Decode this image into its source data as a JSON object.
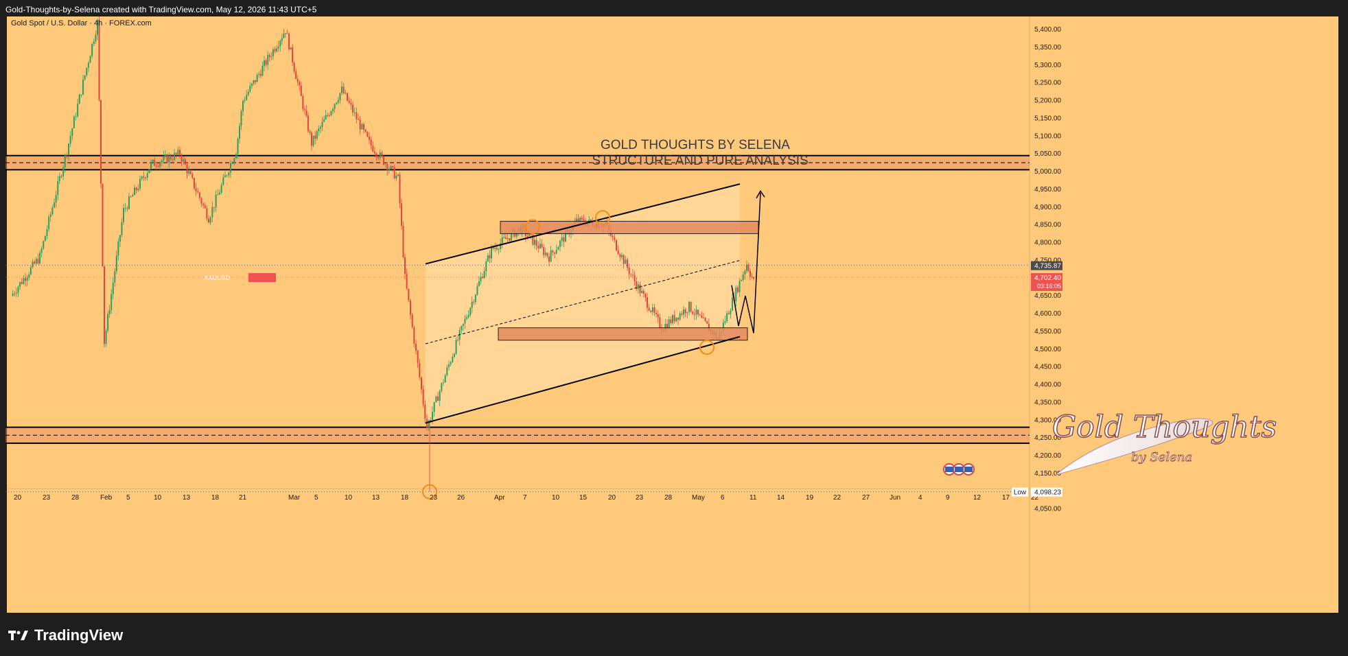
{
  "header": {
    "attribution": "Gold-Thoughts-by-Selena created with TradingView.com, May 12, 2026 11:43 UTC+5"
  },
  "chart_data": {
    "type": "candlestick",
    "symbol_line": "Gold Spot / U.S. Dollar · 4h · FOREX.com",
    "annotation": {
      "line1": "GOLD THOUGHTS BY SELENA",
      "line2": "STRUCTURE AND PURE ANALYSIS"
    },
    "y_ticks": [
      "5,400.00",
      "5,350.00",
      "5,300.00",
      "5,250.00",
      "5,200.00",
      "5,150.00",
      "5,100.00",
      "5,050.00",
      "5,000.00",
      "4,950.00",
      "4,900.00",
      "4,850.00",
      "4,800.00",
      "4,750.00",
      "4,700.00",
      "4,650.00",
      "4,600.00",
      "4,550.00",
      "4,500.00",
      "4,450.00",
      "4,400.00",
      "4,350.00",
      "4,300.00",
      "4,250.00",
      "4,200.00",
      "4,150.00",
      "4,100.00",
      "4,050.00"
    ],
    "ylim": [
      4040,
      5440
    ],
    "x_ticks": [
      "20",
      "23",
      "28",
      "Feb",
      "5",
      "10",
      "13",
      "18",
      "21",
      "Mar",
      "5",
      "10",
      "13",
      "18",
      "23",
      "26",
      "Apr",
      "7",
      "10",
      "15",
      "20",
      "23",
      "28",
      "May",
      "6",
      "11",
      "14",
      "19",
      "22",
      "27",
      "Jun",
      "4",
      "9",
      "12",
      "17",
      "22"
    ],
    "price_labels": {
      "crosshair": "4,735.87",
      "symbol": "XAUUSD",
      "last_price": "4,702.40",
      "countdown": "03:16:05",
      "low_tag": "Low",
      "low_value": "4,098.23"
    },
    "levels": {
      "resistance_zone": [
        5005,
        5045
      ],
      "support_zone": [
        4235,
        4280
      ],
      "supply_box": [
        4825,
        4860
      ],
      "demand_box": [
        4525,
        4560
      ],
      "crosshair_price": 4735.87,
      "last_price": 4702.4,
      "low_price": 4098.23
    },
    "path_keys": [
      {
        "x": "20",
        "y": 4650
      },
      {
        "x": "23",
        "y": 4760
      },
      {
        "x": "28",
        "y": 5080
      },
      {
        "x": "Feb",
        "y": 5420
      },
      {
        "x": "Feb",
        "y": 4520
      },
      {
        "x": "5",
        "y": 4890
      },
      {
        "x": "10",
        "y": 5020
      },
      {
        "x": "13",
        "y": 5050
      },
      {
        "x": "18",
        "y": 4870
      },
      {
        "x": "21",
        "y": 5060
      },
      {
        "x": "21",
        "y": 5200
      },
      {
        "x": "Mar",
        "y": 5400
      },
      {
        "x": "5",
        "y": 5080
      },
      {
        "x": "10",
        "y": 5230
      },
      {
        "x": "13",
        "y": 5080
      },
      {
        "x": "18",
        "y": 4980
      },
      {
        "x": "18",
        "y": 4700
      },
      {
        "x": "23",
        "y": 4280
      },
      {
        "x": "26",
        "y": 4500
      },
      {
        "x": "Apr",
        "y": 4780
      },
      {
        "x": "7",
        "y": 4840
      },
      {
        "x": "10",
        "y": 4760
      },
      {
        "x": "15",
        "y": 4860
      },
      {
        "x": "20",
        "y": 4850
      },
      {
        "x": "23",
        "y": 4700
      },
      {
        "x": "28",
        "y": 4560
      },
      {
        "x": "May",
        "y": 4620
      },
      {
        "x": "6",
        "y": 4530
      },
      {
        "x": "11",
        "y": 4740
      },
      {
        "x": "11",
        "y": 4690
      }
    ],
    "colors": {
      "background": "#ffc97b",
      "up": "#2e9e5e",
      "down": "#e0443e",
      "zone_fill": "#e58a60",
      "channel_fill": "#ffe0a8",
      "circle": "#f08c1a",
      "last_price_tag": "#ef5350",
      "crosshair_tag": "#4a4a4a"
    },
    "logo_text": {
      "script": "Gold Thoughts",
      "sub": "by Selena"
    }
  },
  "footer": {
    "brand": "TradingView"
  }
}
